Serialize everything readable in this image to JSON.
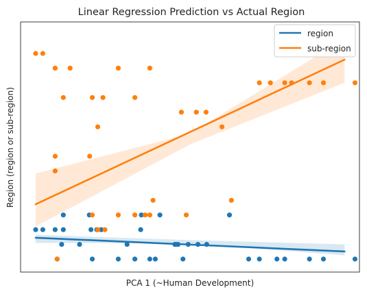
{
  "chart_data": {
    "type": "scatter",
    "title": "Linear Regression Prediction vs Actual Region",
    "xlabel": "PCA 1 (~Human Development)",
    "ylabel": "Region (region or sub-region)",
    "xlim": [
      0,
      100
    ],
    "ylim": [
      -1,
      14
    ],
    "show_ticks": false,
    "legend_position": "top-right",
    "legend": [
      {
        "name": "region",
        "color": "#1f77b4"
      },
      {
        "name": "sub-region",
        "color": "#ff7f0e"
      }
    ],
    "series": [
      {
        "name": "region",
        "color": "#1f77b4",
        "points": [
          [
            5,
            2
          ],
          [
            7.2,
            2
          ],
          [
            11,
            2
          ],
          [
            13.5,
            2
          ],
          [
            22,
            2
          ],
          [
            23.8,
            2
          ],
          [
            25.2,
            2
          ],
          [
            37.3,
            2
          ],
          [
            13.5,
            3
          ],
          [
            21.5,
            3
          ],
          [
            37.5,
            3
          ],
          [
            43.2,
            3
          ],
          [
            64.6,
            3
          ],
          [
            13,
            1
          ],
          [
            18.5,
            1
          ],
          [
            33.1,
            1
          ],
          [
            47.8,
            1
          ],
          [
            48.2,
            1
          ],
          [
            48.8,
            1
          ],
          [
            51.9,
            1
          ],
          [
            54.9,
            1
          ],
          [
            57.6,
            1
          ],
          [
            11.6,
            0
          ],
          [
            22.4,
            0
          ],
          [
            30.4,
            0
          ],
          [
            35.5,
            0
          ],
          [
            40.1,
            0
          ],
          [
            41.8,
            0
          ],
          [
            50.3,
            0
          ],
          [
            70.5,
            0
          ],
          [
            73.8,
            0
          ],
          [
            79.2,
            0
          ],
          [
            81.6,
            0
          ],
          [
            89.2,
            0
          ],
          [
            93.5,
            0
          ],
          [
            103.2,
            0
          ]
        ],
        "fit": {
          "y_left": 1.45,
          "y_right": 0.52
        },
        "band": {
          "left": [
            1.1,
            1.65
          ],
          "mid": [
            1.06,
            1.29
          ],
          "right": [
            0.25,
            1.0
          ]
        }
      },
      {
        "name": "sub-region",
        "color": "#ff7f0e",
        "points": [
          [
            5,
            14
          ],
          [
            7.2,
            14
          ],
          [
            11,
            13
          ],
          [
            15.6,
            13
          ],
          [
            30.4,
            13
          ],
          [
            40.1,
            13
          ],
          [
            13.5,
            11
          ],
          [
            22.4,
            11
          ],
          [
            25.7,
            11
          ],
          [
            35.5,
            11
          ],
          [
            73.8,
            12
          ],
          [
            77.2,
            12
          ],
          [
            81.6,
            12
          ],
          [
            83.7,
            12
          ],
          [
            89.2,
            12
          ],
          [
            93.5,
            12
          ],
          [
            103.2,
            12
          ],
          [
            49.8,
            10
          ],
          [
            54.4,
            10
          ],
          [
            57.4,
            10
          ],
          [
            24.1,
            9
          ],
          [
            62.3,
            9
          ],
          [
            11,
            7
          ],
          [
            21.6,
            7
          ],
          [
            11,
            6
          ],
          [
            41.1,
            4
          ],
          [
            65.2,
            4
          ],
          [
            22.4,
            3
          ],
          [
            30.4,
            3
          ],
          [
            35.5,
            3
          ],
          [
            38.7,
            3
          ],
          [
            40.1,
            3
          ],
          [
            51.3,
            3
          ],
          [
            24.1,
            2
          ],
          [
            26.3,
            2
          ],
          [
            11.6,
            0
          ]
        ],
        "fit": {
          "y_left": 3.73,
          "y_right": 13.58
        },
        "band": {
          "left": [
            2.22,
            5.82
          ],
          "mid": [
            7.8,
            8.55
          ],
          "right": [
            12.0,
            15.0
          ]
        }
      }
    ]
  }
}
